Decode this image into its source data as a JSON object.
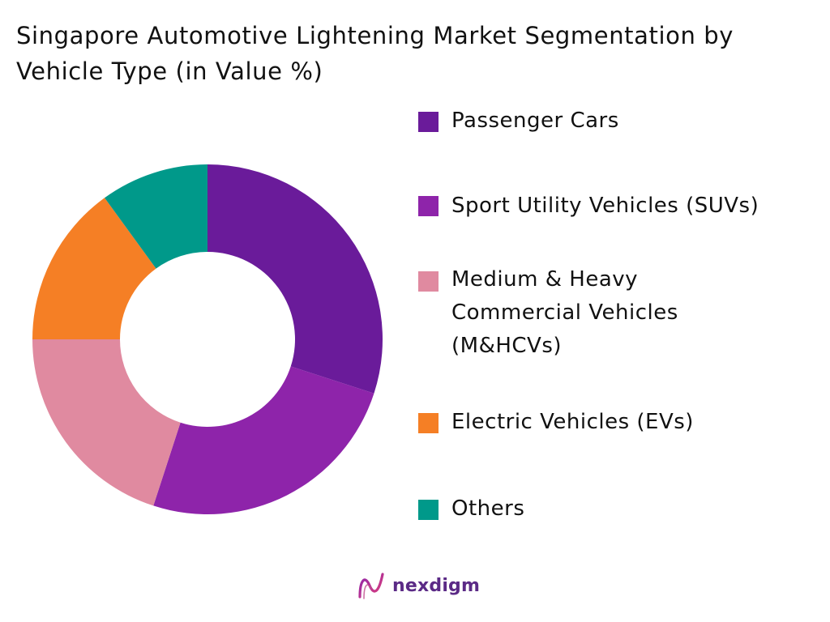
{
  "chart_data": {
    "type": "pie",
    "variant": "donut",
    "title": "Singapore Automotive Lightening Market Segmentation by Vehicle Type (in Value %)",
    "categories": [
      "Passenger Cars",
      "Sport Utility Vehicles (SUVs)",
      "Medium & Heavy Commercial Vehicles (M&HCVs)",
      "Electric Vehicles (EVs)",
      "Others"
    ],
    "values": [
      30,
      25,
      20,
      15,
      10
    ],
    "colors": [
      "#6a1b9a",
      "#8e24aa",
      "#e08aa0",
      "#f57f25",
      "#00998a"
    ],
    "legend_position": "right",
    "data_labels": false,
    "start_angle_deg": 0,
    "direction": "clockwise"
  },
  "brand": {
    "name": "nexdigm",
    "color": "#5b2a86"
  }
}
